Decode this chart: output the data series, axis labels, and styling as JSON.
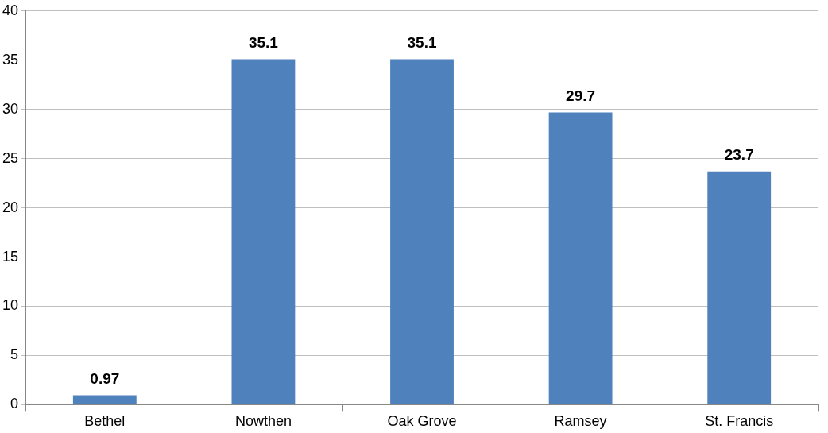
{
  "chart_data": {
    "type": "bar",
    "categories": [
      "Bethel",
      "Nowthen",
      "Oak Grove",
      "Ramsey",
      "St. Francis"
    ],
    "values": [
      0.97,
      35.1,
      35.1,
      29.7,
      23.7
    ],
    "color": "#4f81bd",
    "ylim": [
      0,
      40
    ],
    "yticks": [
      0,
      5,
      10,
      15,
      20,
      25,
      30,
      35,
      40
    ],
    "grid": "y",
    "legend": false,
    "data_labels": true
  }
}
